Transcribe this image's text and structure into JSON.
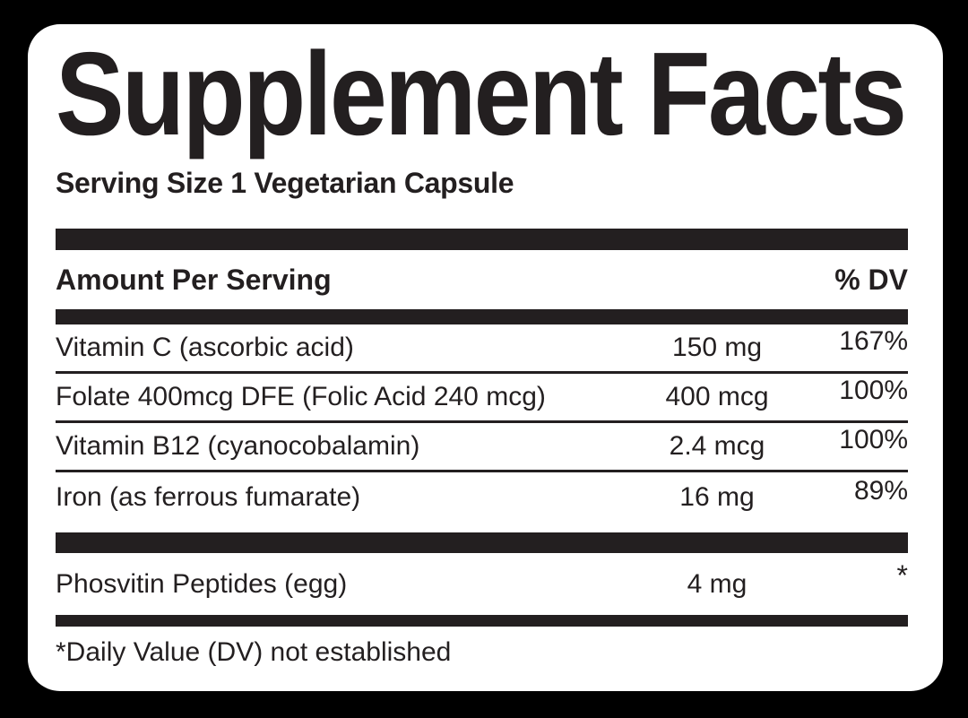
{
  "label": {
    "title": "Supplement Facts",
    "serving_size": "Serving Size 1 Vegetarian Capsule",
    "columns": {
      "amount_header": "Amount Per Serving",
      "dv_header": "% DV"
    },
    "rows": [
      {
        "name": "Vitamin C (ascorbic acid)",
        "amount": "150 mg",
        "dv": "167%"
      },
      {
        "name": "Folate 400mcg DFE (Folic Acid 240 mcg)",
        "amount": "400 mcg",
        "dv": "100%"
      },
      {
        "name": "Vitamin B12 (cyanocobalamin)",
        "amount": "2.4 mcg",
        "dv": "100%"
      },
      {
        "name": "Iron (as ferrous fumarate)",
        "amount": "16 mg",
        "dv": "89%"
      }
    ],
    "other_rows": [
      {
        "name": "Phosvitin Peptides (egg)",
        "amount": "4 mg",
        "dv": "*"
      }
    ],
    "footnote": "*Daily Value (DV) not established",
    "colors": {
      "ink": "#231f20",
      "background": "#000000",
      "panel": "#ffffff"
    }
  }
}
